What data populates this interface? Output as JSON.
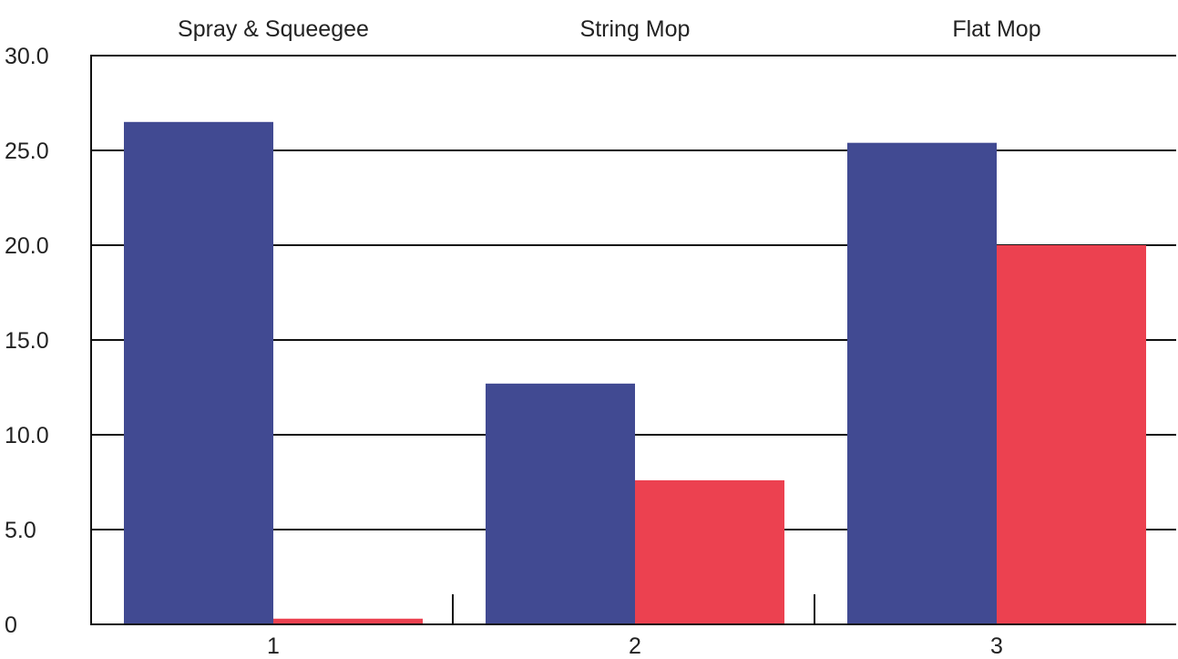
{
  "chart_data": {
    "type": "bar",
    "categories": [
      "1",
      "2",
      "3"
    ],
    "category_titles": [
      "Spray & Squeegee",
      "String Mop",
      "Flat Mop"
    ],
    "series": [
      {
        "values": [
          26.5,
          12.7,
          25.4
        ],
        "color": "#414a92"
      },
      {
        "values": [
          0.3,
          7.6,
          20.0
        ],
        "color": "#ec4150"
      }
    ],
    "y_ticks": [
      "0",
      "5.0",
      "10.0",
      "15.0",
      "20.0",
      "25.0",
      "30.0"
    ],
    "ylim": [
      0,
      30
    ],
    "title": "",
    "xlabel": "",
    "ylabel": "",
    "grid": true,
    "legend": "none"
  }
}
